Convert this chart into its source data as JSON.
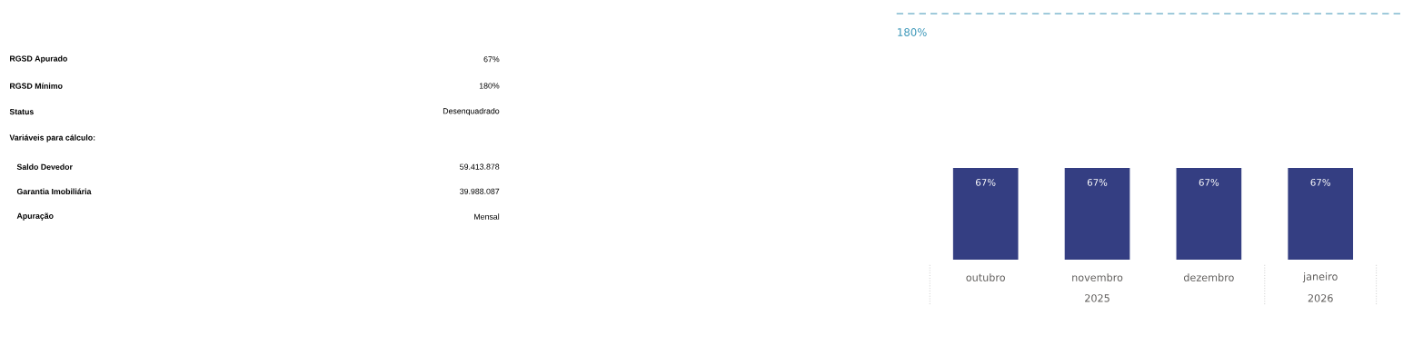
{
  "chart_data": [
    {
      "type": "other",
      "annotations": [
        "RGSD Apurado",
        "67%",
        "RGSD Mínimo",
        "180%",
        "Status",
        "Desenquadrado",
        "Variáveis para cálculo:",
        "Saldo Devedor",
        "59.413.878",
        "Garantia Imobiliária",
        "39.988.087",
        "Apuração",
        "Mensal"
      ]
    },
    {
      "type": "bar",
      "categories": [
        "outubro",
        "novembro",
        "dezembro",
        "janeiro"
      ],
      "values": [
        67,
        67,
        67,
        67
      ],
      "color": "#343e82",
      "value_labels": [
        "67%",
        "67%",
        "67%",
        "67%"
      ],
      "tick_labels": "x",
      "ref_lines": [
        {
          "axis": "y",
          "value": 180,
          "label": "180%",
          "color": "#9fcadb",
          "line_style": "dashed"
        }
      ],
      "annotations": [
        "2025",
        "2026"
      ]
    }
  ]
}
